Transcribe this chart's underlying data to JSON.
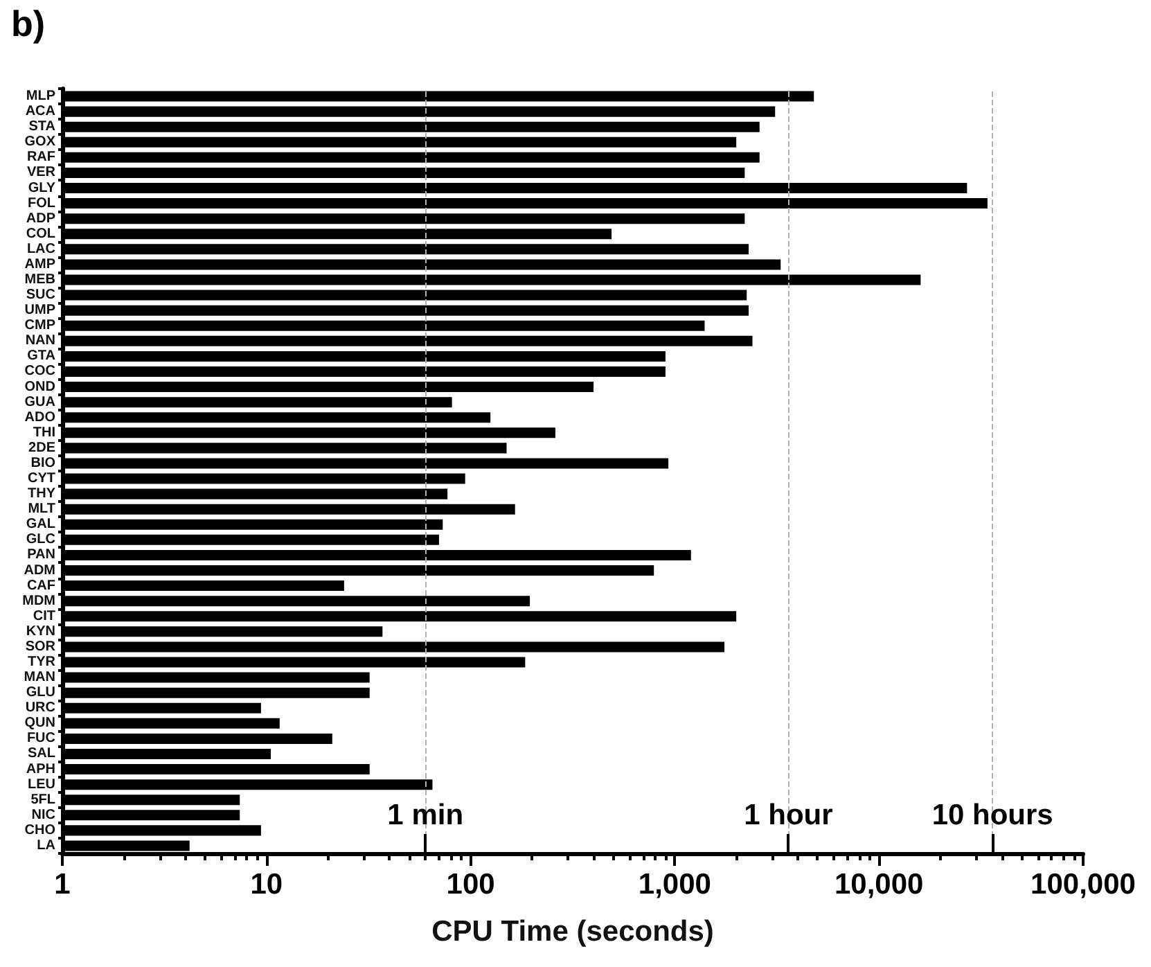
{
  "chart_data": {
    "type": "bar",
    "orientation": "horizontal",
    "xlabel": "CPU Time (seconds)",
    "annotations": [
      "b)"
    ],
    "categories": [
      "MLP",
      "ACA",
      "STA",
      "GOX",
      "RAF",
      "VER",
      "GLY",
      "FOL",
      "ADP",
      "COL",
      "LAC",
      "AMP",
      "MEB",
      "SUC",
      "UMP",
      "CMP",
      "NAN",
      "GTA",
      "COC",
      "OND",
      "GUA",
      "ADO",
      "THI",
      "2DE",
      "BIO",
      "CYT",
      "THY",
      "MLT",
      "GAL",
      "GLC",
      "PAN",
      "ADM",
      "CAF",
      "MDM",
      "CIT",
      "KYN",
      "SOR",
      "TYR",
      "MAN",
      "GLU",
      "URC",
      "QUN",
      "FUC",
      "SAL",
      "APH",
      "LEU",
      "5FL",
      "NIC",
      "CHO",
      "LA"
    ],
    "values": [
      4800,
      3100,
      2600,
      2000,
      2600,
      2200,
      27000,
      34000,
      2200,
      490,
      2300,
      3300,
      16000,
      2250,
      2300,
      1400,
      2400,
      900,
      900,
      400,
      81,
      125,
      260,
      150,
      930,
      94,
      77,
      165,
      73,
      70,
      1200,
      790,
      24,
      195,
      2000,
      37,
      1750,
      185,
      32,
      32,
      9.4,
      11.6,
      21,
      10.5,
      32,
      65,
      7.4,
      7.4,
      9.4,
      4.2
    ],
    "color": "#000000",
    "log": "x",
    "xlim": [
      1,
      100000
    ],
    "xticks": [
      1,
      10,
      100,
      {
        "value": 1000,
        "label": "1,000"
      },
      {
        "value": 10000,
        "label": "10,000"
      },
      {
        "value": 100000,
        "label": "100,000"
      }
    ],
    "grid": false,
    "ref_lines": [
      {
        "axis": "x",
        "value": 60,
        "label": "1 min"
      },
      {
        "axis": "x",
        "value": 3600,
        "label": "1 hour"
      },
      {
        "axis": "x",
        "value": 36000,
        "label": "10 hours"
      }
    ]
  }
}
